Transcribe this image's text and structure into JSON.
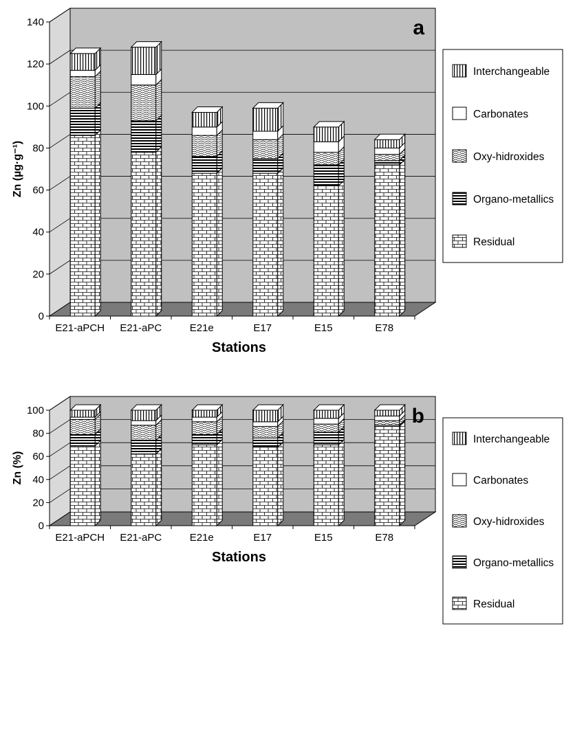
{
  "chart_data": [
    {
      "type": "bar",
      "stacked": true,
      "panel_label": "a",
      "xlabel": "Stations",
      "ylabel": "Zn (µg·g⁻¹)",
      "ylim": [
        0,
        140
      ],
      "yticks": [
        0,
        20,
        40,
        60,
        80,
        100,
        120,
        140
      ],
      "grid": true,
      "legend_position": "right",
      "categories": [
        "E21-aPCH",
        "E21-aPC",
        "E21e",
        "E17",
        "E15",
        "E78"
      ],
      "series": [
        {
          "name": "Residual",
          "values": [
            86,
            78,
            68,
            68,
            62,
            72
          ]
        },
        {
          "name": "Organo-metallics",
          "values": [
            13,
            15,
            8,
            7,
            10,
            2
          ]
        },
        {
          "name": "Oxy-hidroxides",
          "values": [
            15,
            17,
            10,
            9,
            6,
            3
          ]
        },
        {
          "name": "Carbonates",
          "values": [
            3,
            5,
            4,
            4,
            5,
            3
          ]
        },
        {
          "name": "Interchangeable",
          "values": [
            8,
            13,
            7,
            11,
            7,
            4
          ]
        }
      ]
    },
    {
      "type": "bar",
      "stacked": true,
      "panel_label": "b",
      "xlabel": "Stations",
      "ylabel": "Zn (%)",
      "ylim": [
        0,
        100
      ],
      "yticks": [
        0,
        20,
        40,
        60,
        80,
        100
      ],
      "grid": true,
      "legend_position": "right",
      "categories": [
        "E21-aPCH",
        "E21-aPC",
        "E21e",
        "E17",
        "E15",
        "E78"
      ],
      "series": [
        {
          "name": "Residual",
          "values": [
            69,
            62,
            70,
            68,
            70,
            86
          ]
        },
        {
          "name": "Organo-metallics",
          "values": [
            10,
            12,
            9,
            8,
            11,
            1
          ]
        },
        {
          "name": "Oxy-hidroxides",
          "values": [
            13,
            13,
            11,
            10,
            7,
            4
          ]
        },
        {
          "name": "Carbonates",
          "values": [
            2,
            4,
            4,
            4,
            5,
            4
          ]
        },
        {
          "name": "Interchangeable",
          "values": [
            6,
            9,
            6,
            10,
            7,
            5
          ]
        }
      ]
    }
  ]
}
